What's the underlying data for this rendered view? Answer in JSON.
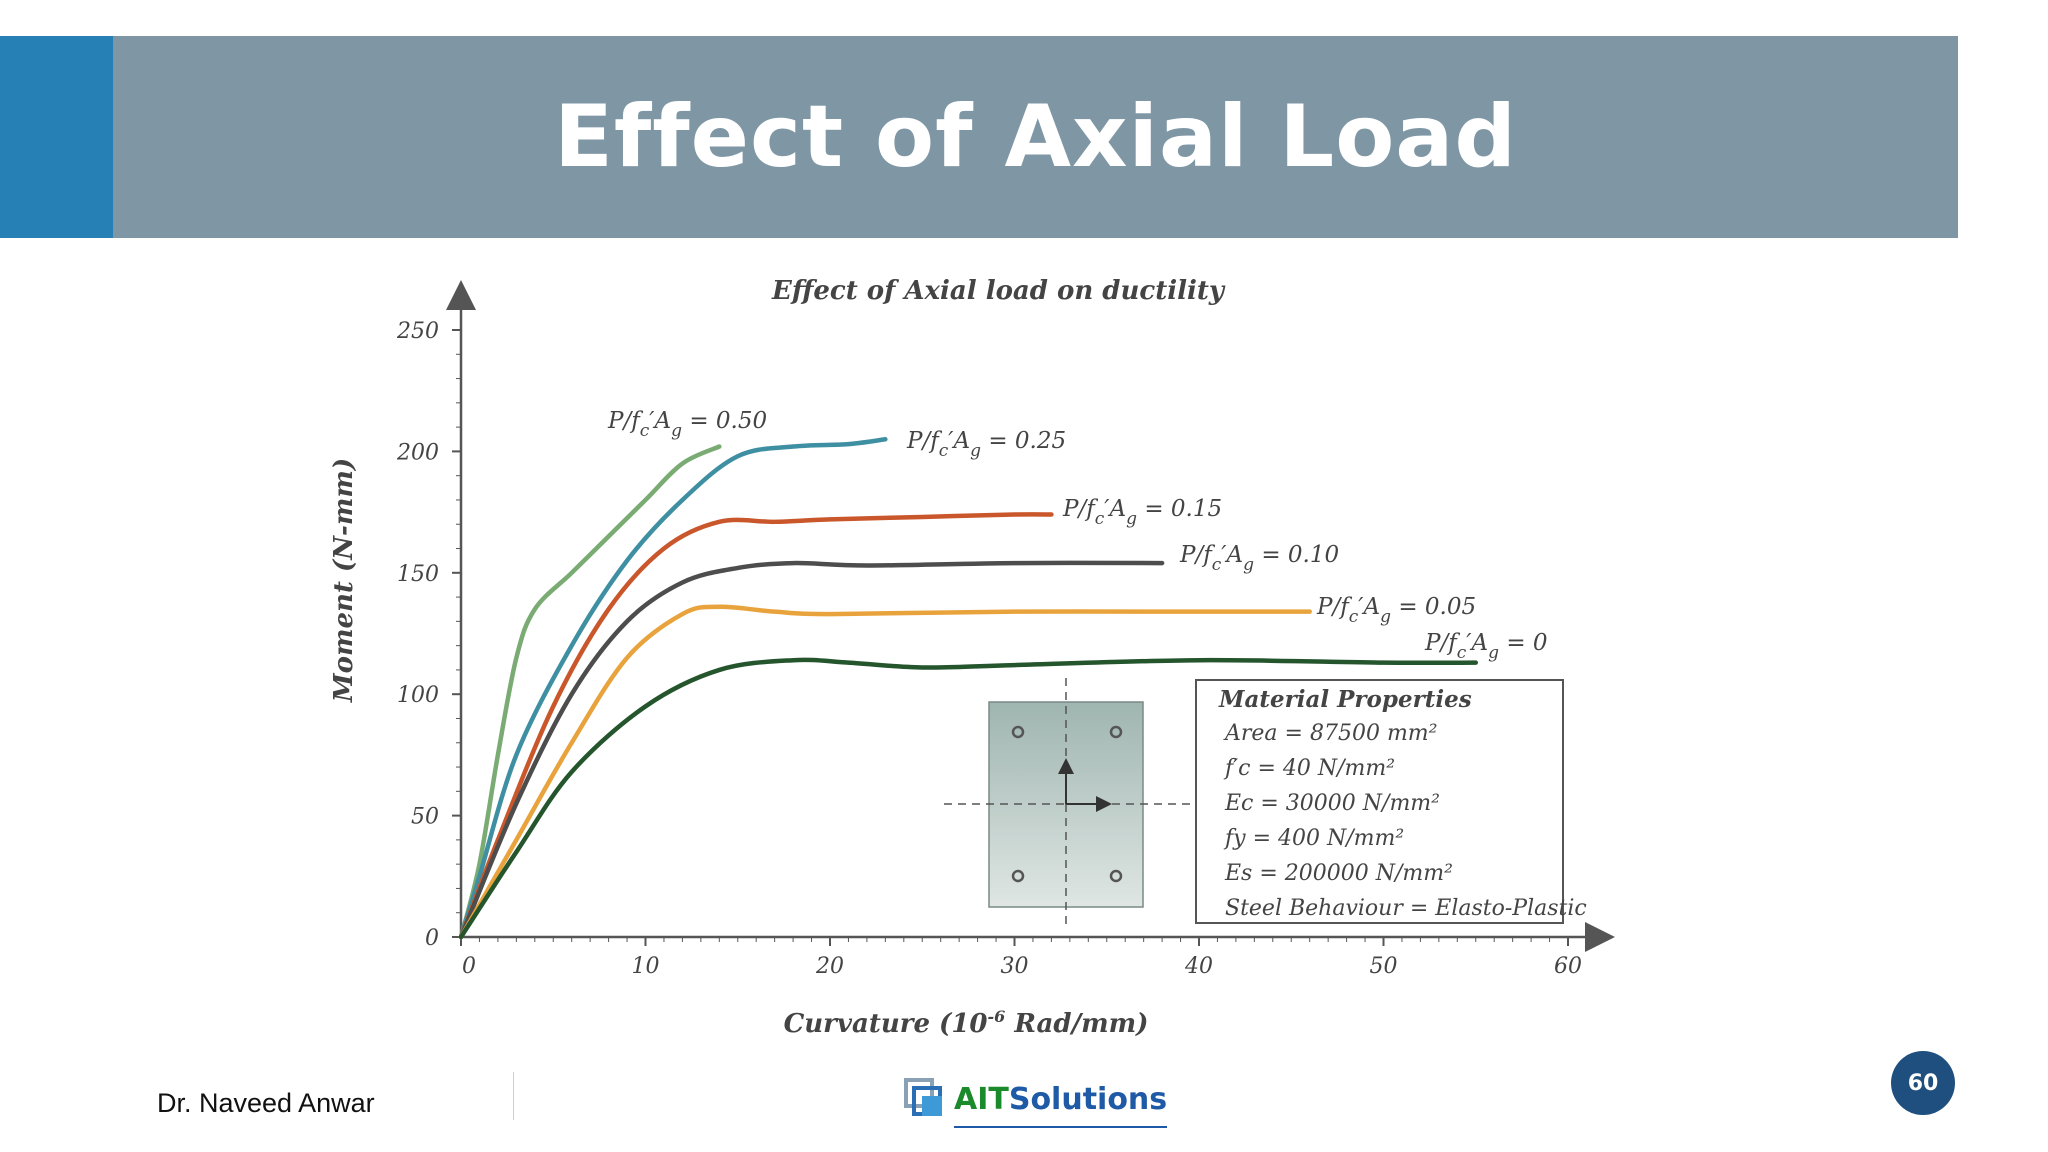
{
  "slide": {
    "title": "Effect of Axial Load",
    "author": "Dr. Naveed Anwar",
    "logo_ait": "AIT",
    "logo_solutions": "Solutions",
    "page_number": "60",
    "colors": {
      "title_bar": "#7f97a5",
      "accent": "#2680b6",
      "badge": "#1f4f7e"
    }
  },
  "chart_data": {
    "type": "line",
    "title": "Effect of Axial load on ductility",
    "xlabel": "Curvature (10",
    "xlabel_exp": "-6",
    "xlabel_rest": " Rad/mm)",
    "ylabel": "Moment (N-mm)",
    "xlim": [
      0,
      60
    ],
    "ylim": [
      0,
      250
    ],
    "xticks": [
      0,
      10,
      20,
      30,
      40,
      50,
      60
    ],
    "yticks": [
      0,
      50,
      100,
      150,
      200,
      250
    ],
    "series": [
      {
        "name": "P/f_c'A_g = 0.50",
        "label_prefix": "P/f",
        "label_sub1": "c",
        "label_mid": "′A",
        "label_sub2": "g",
        "label_value": " = 0.50",
        "color": "#79ab73",
        "points": [
          [
            0,
            0
          ],
          [
            1,
            30
          ],
          [
            2,
            75
          ],
          [
            3,
            115
          ],
          [
            4,
            135
          ],
          [
            6,
            150
          ],
          [
            8,
            165
          ],
          [
            10,
            180
          ],
          [
            12,
            195
          ],
          [
            14,
            202
          ]
        ]
      },
      {
        "name": "P/f_c'A_g = 0.25",
        "label_prefix": "P/f",
        "label_sub1": "c",
        "label_mid": "′A",
        "label_sub2": "g",
        "label_value": " = 0.25",
        "color": "#3f8fa3",
        "points": [
          [
            0,
            0
          ],
          [
            1,
            25
          ],
          [
            3,
            75
          ],
          [
            6,
            120
          ],
          [
            9,
            155
          ],
          [
            12,
            180
          ],
          [
            15,
            198
          ],
          [
            18,
            202
          ],
          [
            21,
            203
          ],
          [
            23,
            205
          ]
        ]
      },
      {
        "name": "P/f_c'A_g = 0.15",
        "label_prefix": "P/f",
        "label_sub1": "c",
        "label_mid": "′A",
        "label_sub2": "g",
        "label_value": " = 0.15",
        "color": "#c9572b",
        "points": [
          [
            0,
            0
          ],
          [
            2,
            40
          ],
          [
            5,
            95
          ],
          [
            8,
            135
          ],
          [
            11,
            160
          ],
          [
            14,
            171
          ],
          [
            17,
            171
          ],
          [
            20,
            172
          ],
          [
            25,
            173
          ],
          [
            30,
            174
          ],
          [
            32,
            174
          ]
        ]
      },
      {
        "name": "P/f_c'A_g = 0.10",
        "label_prefix": "P/f",
        "label_sub1": "c",
        "label_mid": "′A",
        "label_sub2": "g",
        "label_value": " = 0.10",
        "color": "#4d4d4d",
        "points": [
          [
            0,
            0
          ],
          [
            3,
            55
          ],
          [
            6,
            100
          ],
          [
            9,
            130
          ],
          [
            12,
            146
          ],
          [
            15,
            152
          ],
          [
            18,
            154
          ],
          [
            22,
            153
          ],
          [
            30,
            154
          ],
          [
            38,
            154
          ]
        ]
      },
      {
        "name": "P/f_c'A_g = 0.05",
        "label_prefix": "P/f",
        "label_sub1": "c",
        "label_mid": "′A",
        "label_sub2": "g",
        "label_value": " = 0.05",
        "color": "#e9a33d",
        "points": [
          [
            0,
            0
          ],
          [
            3,
            40
          ],
          [
            6,
            80
          ],
          [
            9,
            115
          ],
          [
            12,
            133
          ],
          [
            14,
            136
          ],
          [
            17,
            134
          ],
          [
            20,
            133
          ],
          [
            30,
            134
          ],
          [
            40,
            134
          ],
          [
            46,
            134
          ]
        ]
      },
      {
        "name": "P/f_c'A_g = 0",
        "label_prefix": "P/f",
        "label_sub1": "c",
        "label_mid": "′A",
        "label_sub2": "g",
        "label_value": " = 0",
        "color": "#24552d",
        "points": [
          [
            0,
            0
          ],
          [
            3,
            35
          ],
          [
            6,
            68
          ],
          [
            10,
            95
          ],
          [
            14,
            110
          ],
          [
            18,
            114
          ],
          [
            21,
            113
          ],
          [
            25,
            111
          ],
          [
            30,
            112
          ],
          [
            40,
            114
          ],
          [
            50,
            113
          ],
          [
            55,
            113
          ]
        ]
      }
    ],
    "material_properties": {
      "heading": "Material Properties",
      "lines": [
        "Area = 87500 mm²",
        "f′c  = 40         N/mm²",
        "Ec = 30000    N/mm²",
        "fy  = 400       N/mm²",
        "Es = 200000   N/mm²",
        "Steel Behaviour = Elasto-Plastic"
      ]
    }
  }
}
